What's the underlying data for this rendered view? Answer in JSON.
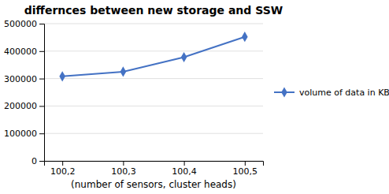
{
  "chart_data": {
    "type": "line",
    "title": "differnces between new storage and SSW",
    "xlabel": "(number of sensors, cluster heads)",
    "categories": [
      "100,2",
      "100,3",
      "100,4",
      "100,5"
    ],
    "series": [
      {
        "name": "volume of data in KB",
        "color": "#4472C4",
        "marker": "diamond",
        "values": [
          308000,
          325000,
          378000,
          452000
        ]
      }
    ],
    "ylim": [
      0,
      500000
    ],
    "yticks": [
      0,
      100000,
      200000,
      300000,
      400000,
      500000
    ],
    "grid": true,
    "legend": "right"
  }
}
